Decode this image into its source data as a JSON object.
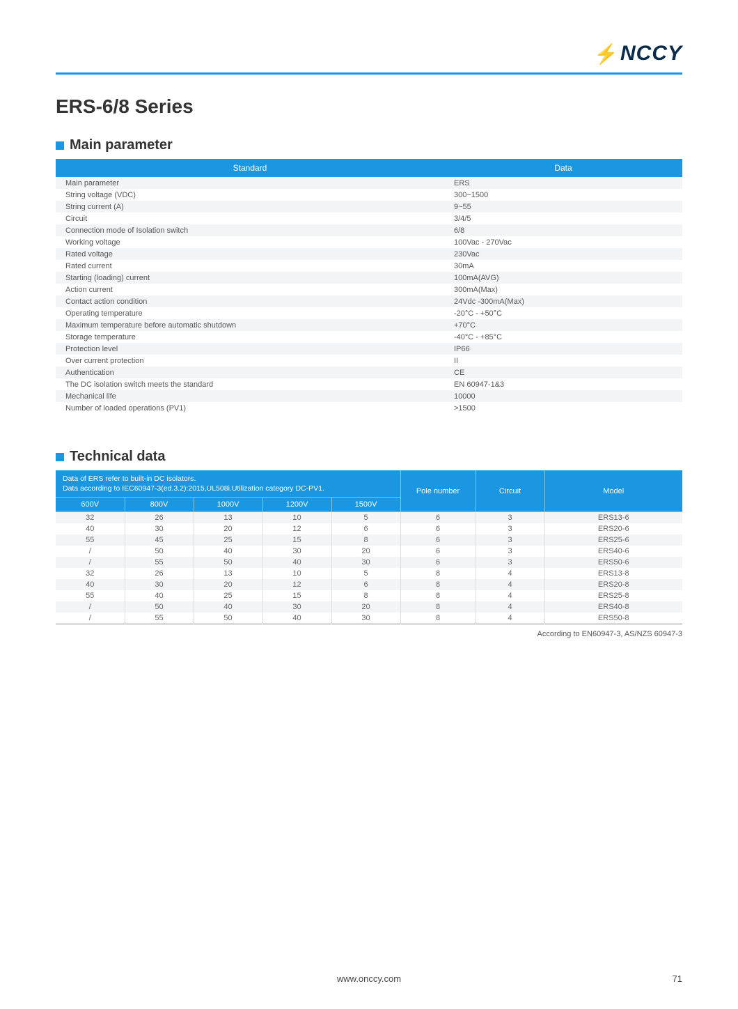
{
  "brand": {
    "name": "NCCY"
  },
  "page_title": "ERS-6/8 Series",
  "main_parameter": {
    "heading": "Main parameter",
    "columns": [
      "Standard",
      "Data"
    ],
    "rows": [
      [
        "Main parameter",
        "ERS"
      ],
      [
        "String voltage (VDC)",
        "300~1500"
      ],
      [
        "String current (A)",
        "9~55"
      ],
      [
        "Circuit",
        "3/4/5"
      ],
      [
        "Connection mode of Isolation switch",
        "6/8"
      ],
      [
        "Working voltage",
        "100Vac - 270Vac"
      ],
      [
        "Rated voltage",
        "230Vac"
      ],
      [
        "Rated current",
        "30mA"
      ],
      [
        "Starting (loading) current",
        "100mA(AVG)"
      ],
      [
        "Action current",
        "300mA(Max)"
      ],
      [
        "Contact action condition",
        "24Vdc -300mA(Max)"
      ],
      [
        "Operating temperature",
        "-20°C - +50°C"
      ],
      [
        "Maximum temperature before automatic shutdown",
        "+70°C"
      ],
      [
        "Storage temperature",
        "-40°C - +85°C"
      ],
      [
        "Protection level",
        "IP66"
      ],
      [
        "Over current protection",
        "II"
      ],
      [
        "Authentication",
        "CE"
      ],
      [
        "The DC isolation switch meets the standard",
        "EN 60947-1&3"
      ],
      [
        "Mechanical life",
        "10000"
      ],
      [
        "Number of loaded operations (PV1)",
        ">1500"
      ]
    ]
  },
  "technical_data": {
    "heading": "Technical data",
    "note_line1": "Data of ERS refer to built-in DC isolators.",
    "note_line2": "Data according to IEC60947-3(ed.3.2):2015,UL508i.Utilization category DC-PV1.",
    "headers": {
      "voltages": [
        "600V",
        "800V",
        "1000V",
        "1200V",
        "1500V"
      ],
      "pole": "Pole number",
      "circuit": "Circuit",
      "model": "Model"
    },
    "rows": [
      [
        "32",
        "26",
        "13",
        "10",
        "5",
        "6",
        "3",
        "ERS13-6"
      ],
      [
        "40",
        "30",
        "20",
        "12",
        "6",
        "6",
        "3",
        "ERS20-6"
      ],
      [
        "55",
        "45",
        "25",
        "15",
        "8",
        "6",
        "3",
        "ERS25-6"
      ],
      [
        "/",
        "50",
        "40",
        "30",
        "20",
        "6",
        "3",
        "ERS40-6"
      ],
      [
        "/",
        "55",
        "50",
        "40",
        "30",
        "6",
        "3",
        "ERS50-6"
      ],
      [
        "32",
        "26",
        "13",
        "10",
        "5",
        "8",
        "4",
        "ERS13-8"
      ],
      [
        "40",
        "30",
        "20",
        "12",
        "6",
        "8",
        "4",
        "ERS20-8"
      ],
      [
        "55",
        "40",
        "25",
        "15",
        "8",
        "8",
        "4",
        "ERS25-8"
      ],
      [
        "/",
        "50",
        "40",
        "30",
        "20",
        "8",
        "4",
        "ERS40-8"
      ],
      [
        "/",
        "55",
        "50",
        "40",
        "30",
        "8",
        "4",
        "ERS50-8"
      ]
    ],
    "footnote": "According to EN60947-3, AS/NZS 60947-3"
  },
  "footer": {
    "url": "www.onccy.com",
    "page": "71"
  }
}
